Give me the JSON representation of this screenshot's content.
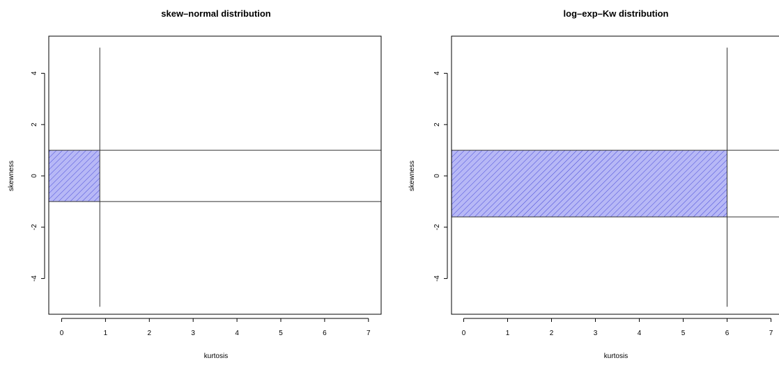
{
  "chart_data": [
    {
      "type": "line",
      "title": "skew–normal distribution",
      "xlabel": "kurtosis",
      "ylabel": "skewness",
      "xlim": [
        -0.3,
        7.3
      ],
      "ylim": [
        -5.4,
        5.5
      ],
      "xticks": [
        0,
        1,
        2,
        3,
        4,
        5,
        6,
        7
      ],
      "yticks": [
        -4,
        -2,
        0,
        2,
        4
      ],
      "grid": false,
      "vertical_line": {
        "x": 0.87,
        "y_range": [
          -5.1,
          5.0
        ]
      },
      "horizontal_lines": [
        1.0,
        -1.0
      ],
      "shaded_region": {
        "x": [
          -0.3,
          0.87
        ],
        "y": [
          -1.0,
          1.0
        ],
        "fill": "#a9aaf5",
        "hatch": "#3a3cd6"
      }
    },
    {
      "type": "line",
      "title": "log–exp–Kw distribution",
      "xlabel": "kurtosis",
      "ylabel": "skewness",
      "xlim": [
        -0.3,
        7.3
      ],
      "ylim": [
        -5.4,
        5.5
      ],
      "xticks": [
        0,
        1,
        2,
        3,
        4,
        5,
        6,
        7
      ],
      "yticks": [
        -4,
        -2,
        0,
        2,
        4
      ],
      "grid": false,
      "vertical_line": {
        "x": 6.0,
        "y_range": [
          -5.1,
          5.0
        ]
      },
      "horizontal_lines": [
        1.0,
        -1.6
      ],
      "shaded_region": {
        "x": [
          -0.3,
          6.0
        ],
        "y": [
          -1.6,
          1.0
        ],
        "fill": "#a9aaf5",
        "hatch": "#3a3cd6"
      }
    }
  ]
}
